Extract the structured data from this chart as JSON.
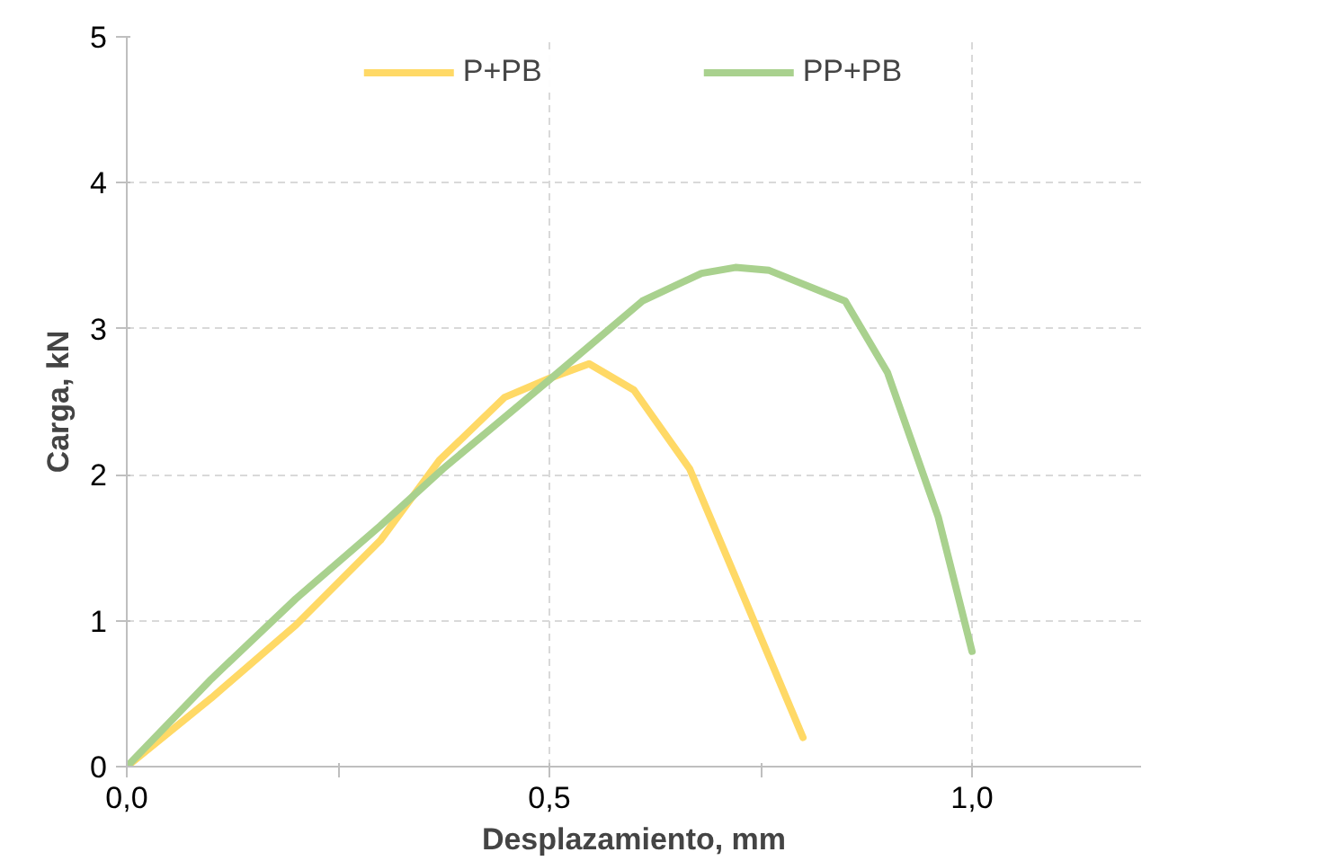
{
  "chart_data": {
    "type": "line",
    "xlabel": "Desplazamiento, mm",
    "ylabel": "Carga, kN",
    "xlim": [
      0,
      1.2
    ],
    "ylim": [
      0,
      5
    ],
    "xticks": [
      {
        "value": 0,
        "label": "0,0"
      },
      {
        "value": 0.25,
        "label": null
      },
      {
        "value": 0.5,
        "label": "0,5"
      },
      {
        "value": 0.75,
        "label": null
      },
      {
        "value": 1.0,
        "label": "1,0"
      }
    ],
    "yticks": [
      0,
      1,
      2,
      3,
      4,
      5
    ],
    "grid": true,
    "legend": "top",
    "marker": "none",
    "line_style": "solid",
    "series": [
      {
        "name": "P+PB",
        "color": "#ffd966",
        "x": [
          0,
          0.1,
          0.2,
          0.3,
          0.37,
          0.447,
          0.5,
          0.547,
          0.6,
          0.666,
          0.72,
          0.8
        ],
        "values": [
          0,
          0.47,
          0.97,
          1.55,
          2.1,
          2.53,
          2.66,
          2.76,
          2.58,
          2.04,
          1.3,
          0.2
        ]
      },
      {
        "name": "PP+PB",
        "color": "#a9d18e",
        "x": [
          0,
          0.1,
          0.2,
          0.3,
          0.374,
          0.5,
          0.61,
          0.68,
          0.72,
          0.76,
          0.85,
          0.9,
          0.96,
          1.0
        ],
        "values": [
          0,
          0.6,
          1.15,
          1.65,
          2.04,
          2.65,
          3.19,
          3.38,
          3.42,
          3.4,
          3.19,
          2.7,
          1.71,
          0.79
        ]
      }
    ]
  }
}
